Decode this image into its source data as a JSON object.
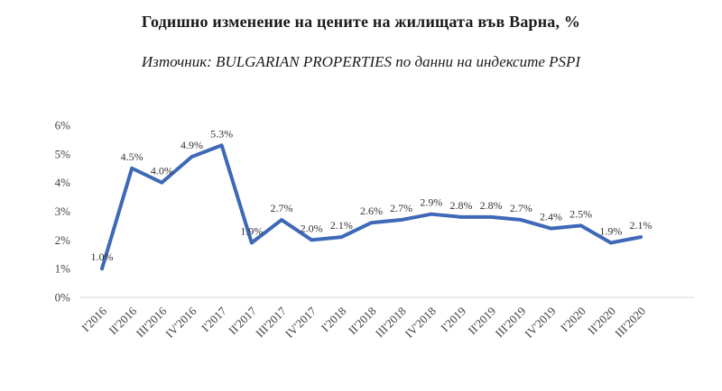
{
  "title": "Годишно изменение на цените на жилищата във Варна, %",
  "subtitle": "Източник: BULGARIAN PROPERTIES по данни на индексите PSPI",
  "chart_data": {
    "type": "line",
    "categories": [
      "I'2016",
      "II'2016",
      "III'2016",
      "IV'2016",
      "I'2017",
      "II'2017",
      "III'2017",
      "IV'2017",
      "I'2018",
      "II'2018",
      "III'2018",
      "IV'2018",
      "I'2019",
      "II'2019",
      "III'2019",
      "IV'2019",
      "I'2020",
      "II'2020",
      "III'2020"
    ],
    "values": [
      1.0,
      4.5,
      4.0,
      4.9,
      5.3,
      1.9,
      2.7,
      2.0,
      2.1,
      2.6,
      2.7,
      2.9,
      2.8,
      2.8,
      2.7,
      2.4,
      2.5,
      1.9,
      2.1
    ],
    "data_labels": [
      "1.0%",
      "4.5%",
      "4.0%",
      "4.9%",
      "5.3%",
      "1.9%",
      "2.7%",
      "2.0%",
      "2.1%",
      "2.6%",
      "2.7%",
      "2.9%",
      "2.8%",
      "2.8%",
      "2.7%",
      "2.4%",
      "2.5%",
      "1.9%",
      "2.1%"
    ],
    "y_ticks": [
      "0%",
      "1%",
      "2%",
      "3%",
      "4%",
      "5%",
      "6%"
    ],
    "ylim": [
      0,
      6
    ],
    "xlabel": "",
    "ylabel": "",
    "grid": false,
    "legend": "none",
    "line_color": "#3e68b8",
    "axis_color": "#d9d9d9",
    "tick_color": "#404040",
    "data_label_color": "#333333"
  }
}
